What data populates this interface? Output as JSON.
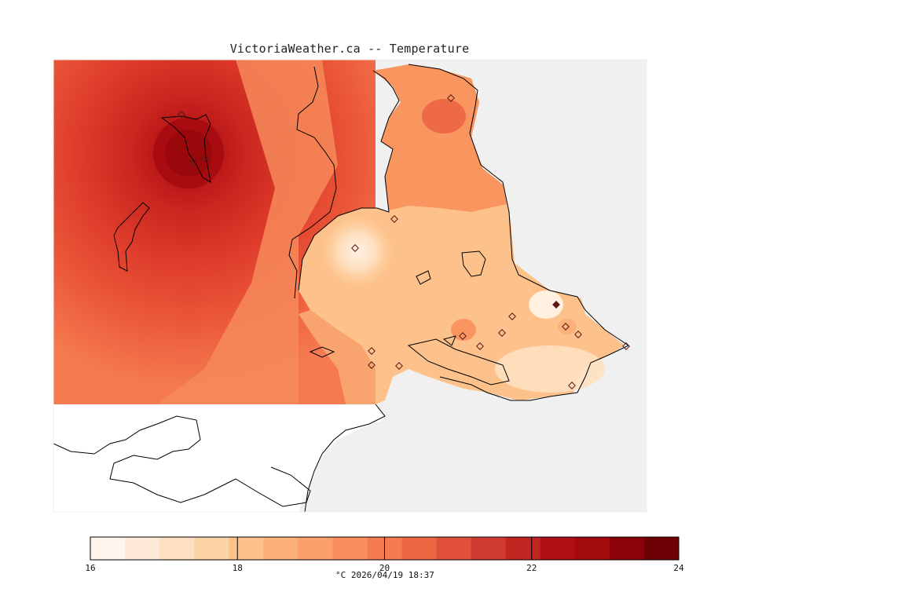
{
  "title": "VictoriaWeather.ca -- Temperature",
  "colorbar": {
    "min": 16,
    "max": 24,
    "tick_labels": [
      "16",
      "18",
      "20",
      "22",
      "24"
    ],
    "tick_values": [
      16,
      18,
      20,
      22,
      24
    ],
    "colors": [
      "#fff5ec",
      "#feead7",
      "#fee0c0",
      "#fdd4a6",
      "#fdc28b",
      "#fcb07a",
      "#fb9f6b",
      "#fa8f5d",
      "#f57a4f",
      "#ed6644",
      "#e1503a",
      "#d03a2e",
      "#c02522",
      "#b01014",
      "#a20a0e",
      "#8b0309",
      "#6f0005"
    ],
    "caption": "°C  2026/04/19 18:37"
  },
  "map": {
    "background": "#f0f0f0",
    "no_data_color": "#ffffff",
    "line_color": "#000000",
    "stations_visible": 18
  }
}
